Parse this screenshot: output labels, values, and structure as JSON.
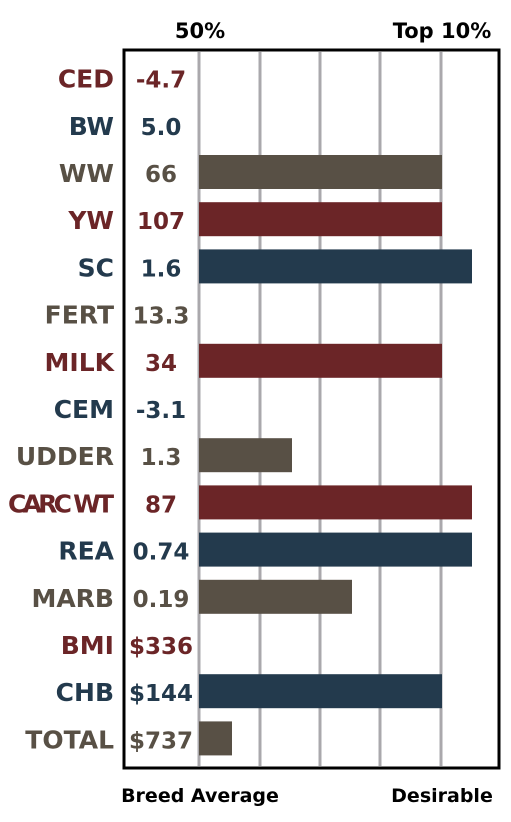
{
  "chart_data": {
    "type": "bar",
    "orientation": "horizontal",
    "top_labels": {
      "left": "50%",
      "right": "Top 10%"
    },
    "bottom_labels": {
      "left": "Breed Average",
      "right": "Desirable"
    },
    "x_scale": {
      "min_label": "50%",
      "max_label": "Top 10%"
    },
    "rows": [
      {
        "trait": "CED",
        "value": "-4.7",
        "bar": 0,
        "color": "#6b2527"
      },
      {
        "trait": "BW",
        "value": "5.0",
        "bar": 0,
        "color": "#233a4d"
      },
      {
        "trait": "WW",
        "value": "66",
        "bar": 0.81,
        "color": "#585045"
      },
      {
        "trait": "YW",
        "value": "107",
        "bar": 0.81,
        "color": "#6b2527"
      },
      {
        "trait": "SC",
        "value": "1.6",
        "bar": 0.91,
        "color": "#233a4d"
      },
      {
        "trait": "FERT",
        "value": "13.3",
        "bar": 0,
        "color": "#585045"
      },
      {
        "trait": "MILK",
        "value": "34",
        "bar": 0.81,
        "color": "#6b2527"
      },
      {
        "trait": "CEM",
        "value": "-3.1",
        "bar": 0,
        "color": "#233a4d"
      },
      {
        "trait": "UDDER",
        "value": "1.3",
        "bar": 0.31,
        "color": "#585045"
      },
      {
        "trait": "CARC WT",
        "value": "87",
        "bar": 0.91,
        "color": "#6b2527"
      },
      {
        "trait": "REA",
        "value": "0.74",
        "bar": 0.91,
        "color": "#233a4d"
      },
      {
        "trait": "MARB",
        "value": "0.19",
        "bar": 0.51,
        "color": "#585045"
      },
      {
        "trait": "BMI",
        "value": "$336",
        "bar": 0,
        "color": "#6b2527"
      },
      {
        "trait": "CHB",
        "value": "$144",
        "bar": 0.81,
        "color": "#233a4d"
      },
      {
        "trait": "TOTAL",
        "value": "$737",
        "bar": 0.11,
        "color": "#585045"
      }
    ],
    "grid": true,
    "gridline_count": 5
  }
}
